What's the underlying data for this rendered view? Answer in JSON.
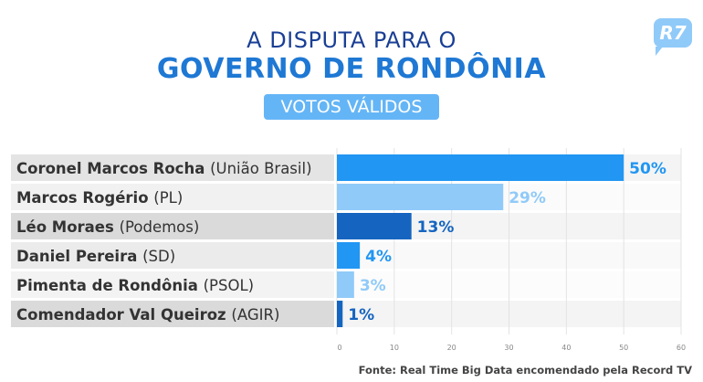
{
  "title_line1": "A DISPUTA PARA O",
  "title_line2": "GOVERNO DE RONDÔNIA",
  "badge": "VOTOS VÁLIDOS",
  "logo": "R7",
  "footer": "Fonte: Real Time Big Data encomendado pela Record TV",
  "chart_data": {
    "type": "bar",
    "orientation": "horizontal",
    "title": "A DISPUTA PARA O GOVERNO DE RONDÔNIA",
    "subtitle": "VOTOS VÁLIDOS",
    "categories": [
      {
        "name": "Coronel Marcos Rocha",
        "party": "(União Brasil)"
      },
      {
        "name": "Marcos Rogério",
        "party": "(PL)"
      },
      {
        "name": "Léo Moraes",
        "party": "(Podemos)"
      },
      {
        "name": "Daniel Pereira",
        "party": "(SD)"
      },
      {
        "name": "Pimenta de Rondônia",
        "party": "(PSOL)"
      },
      {
        "name": "Comendador Val Queiroz",
        "party": "(AGIR)"
      }
    ],
    "values": [
      50,
      29,
      13,
      4,
      3,
      1
    ],
    "value_labels": [
      "50%",
      "29%",
      "13%",
      "4%",
      "3%",
      "1%"
    ],
    "colors": [
      "#2196f3",
      "#90caf9",
      "#1565c0",
      "#2196f3",
      "#90caf9",
      "#1565c0"
    ],
    "xlim": [
      0,
      60
    ],
    "xticks": [
      0,
      10,
      20,
      30,
      40,
      50,
      60
    ],
    "grid": true,
    "legend": "none"
  }
}
